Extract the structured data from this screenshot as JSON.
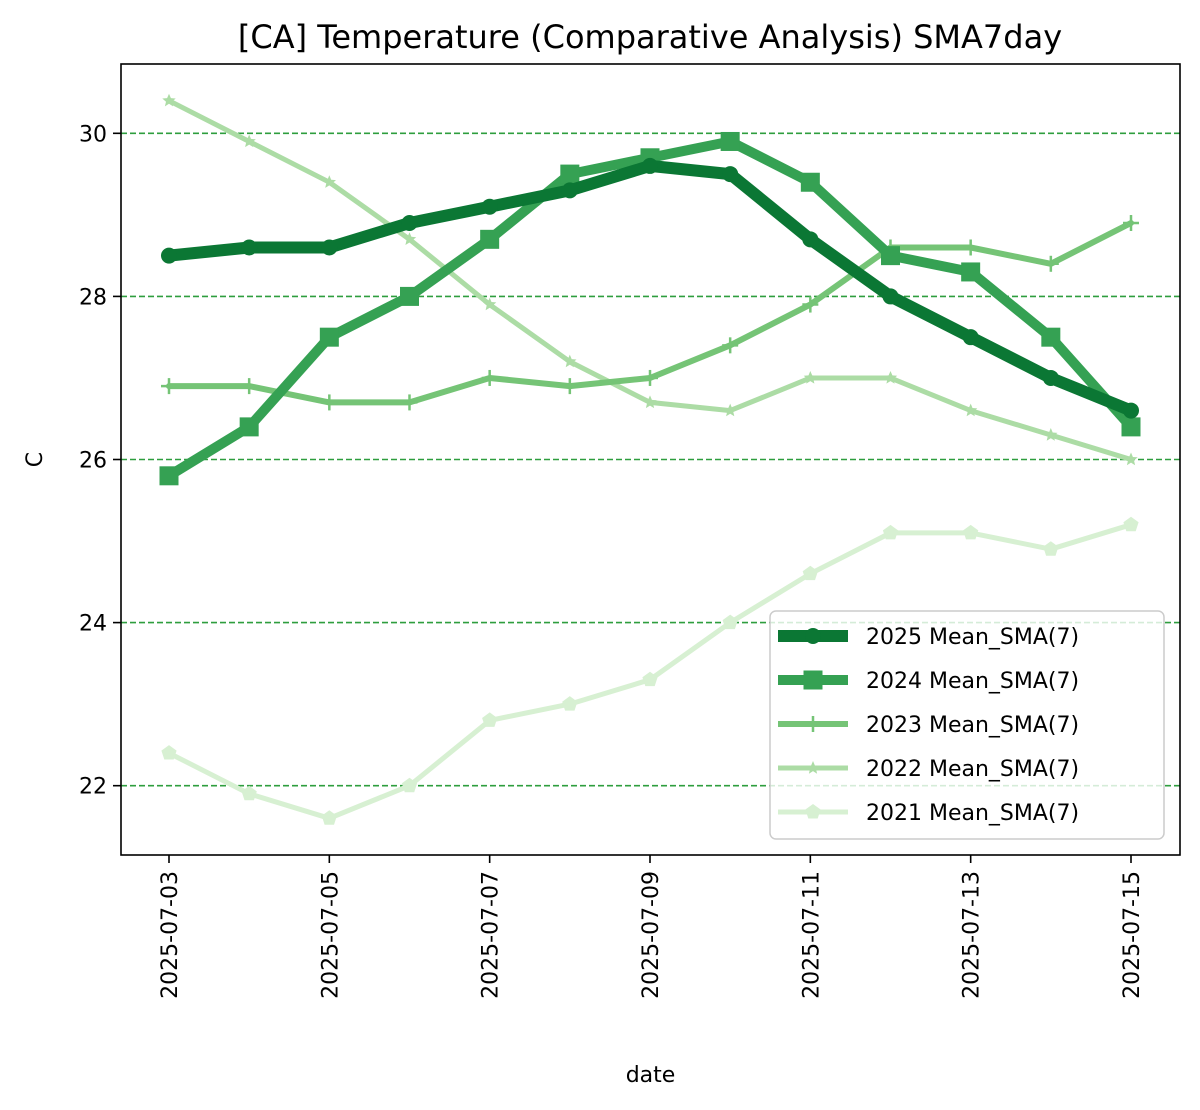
{
  "chart_data": {
    "type": "line",
    "title": "[CA] Temperature (Comparative Analysis) SMA7day",
    "xlabel": "date",
    "ylabel": "C",
    "x": [
      "2025-07-03",
      "2025-07-04",
      "2025-07-05",
      "2025-07-06",
      "2025-07-07",
      "2025-07-08",
      "2025-07-09",
      "2025-07-10",
      "2025-07-11",
      "2025-07-12",
      "2025-07-13",
      "2025-07-14",
      "2025-07-15"
    ],
    "x_tick_labels": [
      "2025-07-03",
      "2025-07-05",
      "2025-07-07",
      "2025-07-09",
      "2025-07-11",
      "2025-07-13",
      "2025-07-15"
    ],
    "y_ticks": [
      22,
      24,
      26,
      28,
      30
    ],
    "ylim": [
      21.15,
      30.85
    ],
    "grid": "horizontal dashed",
    "grid_color": "#2e9e3e",
    "legend_position": "lower right",
    "series": [
      {
        "name": "2025 Mean_SMA(7)",
        "color": "#0b7734",
        "marker": "circle",
        "values": [
          28.5,
          28.6,
          28.6,
          28.9,
          29.1,
          29.3,
          29.6,
          29.5,
          28.7,
          28.0,
          27.5,
          27.0,
          26.6
        ]
      },
      {
        "name": "2024 Mean_SMA(7)",
        "color": "#35a153",
        "marker": "square",
        "values": [
          25.8,
          26.4,
          27.5,
          28.0,
          28.7,
          29.5,
          29.7,
          29.9,
          29.4,
          28.5,
          28.3,
          27.5,
          26.4
        ]
      },
      {
        "name": "2023 Mean_SMA(7)",
        "color": "#75c476",
        "marker": "plus",
        "values": [
          26.9,
          26.9,
          26.7,
          26.7,
          27.0,
          26.9,
          27.0,
          27.4,
          27.9,
          28.6,
          28.6,
          28.4,
          28.9
        ]
      },
      {
        "name": "2022 Mean_SMA(7)",
        "color": "#acdca5",
        "marker": "star",
        "values": [
          30.4,
          29.9,
          29.4,
          28.7,
          27.9,
          27.2,
          26.7,
          26.6,
          27.0,
          27.0,
          26.6,
          26.3,
          26.0
        ]
      },
      {
        "name": "2021 Mean_SMA(7)",
        "color": "#d7f0d2",
        "marker": "pentagon",
        "values": [
          22.4,
          21.9,
          21.6,
          22.0,
          22.8,
          23.0,
          23.3,
          24.0,
          24.6,
          25.1,
          25.1,
          24.9,
          25.2
        ]
      }
    ]
  }
}
